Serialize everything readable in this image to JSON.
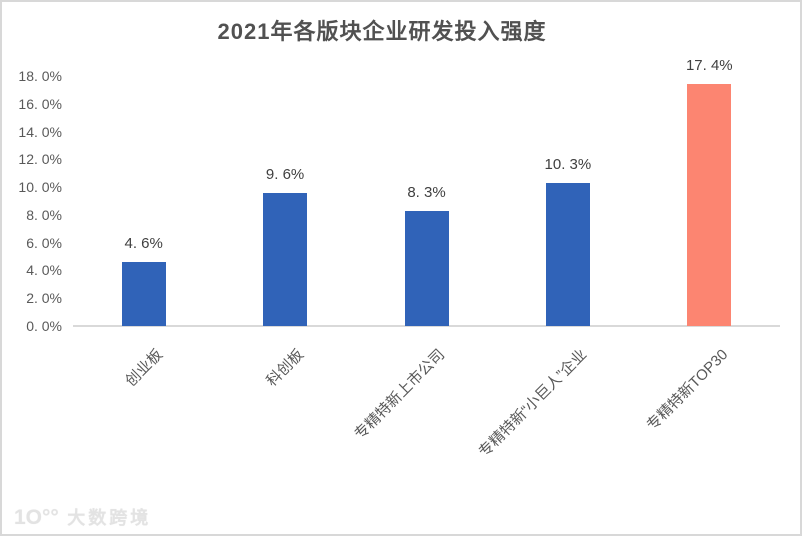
{
  "chart_data": {
    "type": "bar",
    "title": "2021年各版块企业研发投入强度",
    "categories": [
      "创业板",
      "科创板",
      "专精特新上市公司",
      "专精特新“小巨人”企业",
      "专精特新TOP30"
    ],
    "values": [
      4.6,
      9.6,
      8.3,
      10.3,
      17.4
    ],
    "data_labels": [
      "4. 6%",
      "9. 6%",
      "8. 3%",
      "10. 3%",
      "17. 4%"
    ],
    "y_tick_values": [
      0,
      2,
      4,
      6,
      8,
      10,
      12,
      14,
      16,
      18
    ],
    "y_tick_labels": [
      "0. 0%",
      "2. 0%",
      "4. 0%",
      "6. 0%",
      "8. 0%",
      "10. 0%",
      "12. 0%",
      "14. 0%",
      "16. 0%",
      "18. 0%"
    ],
    "ylim": [
      0,
      18
    ],
    "xlabel": "",
    "ylabel": "",
    "grid": false,
    "legend": null,
    "bar_colors": [
      "#3063b8",
      "#3063b8",
      "#3063b8",
      "#3063b8",
      "#fc8571"
    ],
    "highlight_index": 4
  },
  "colors": {
    "bar_blue": "#3063b8",
    "bar_highlight": "#fc8571",
    "axis_line": "#d9d9d9",
    "frame_border": "#d8d8d8",
    "title_text": "#515151",
    "axis_text": "#595959",
    "value_text": "#404040",
    "watermark_text": "#e3e3e3"
  },
  "watermark": {
    "logo": "1O°°",
    "brand": "大数跨境"
  }
}
